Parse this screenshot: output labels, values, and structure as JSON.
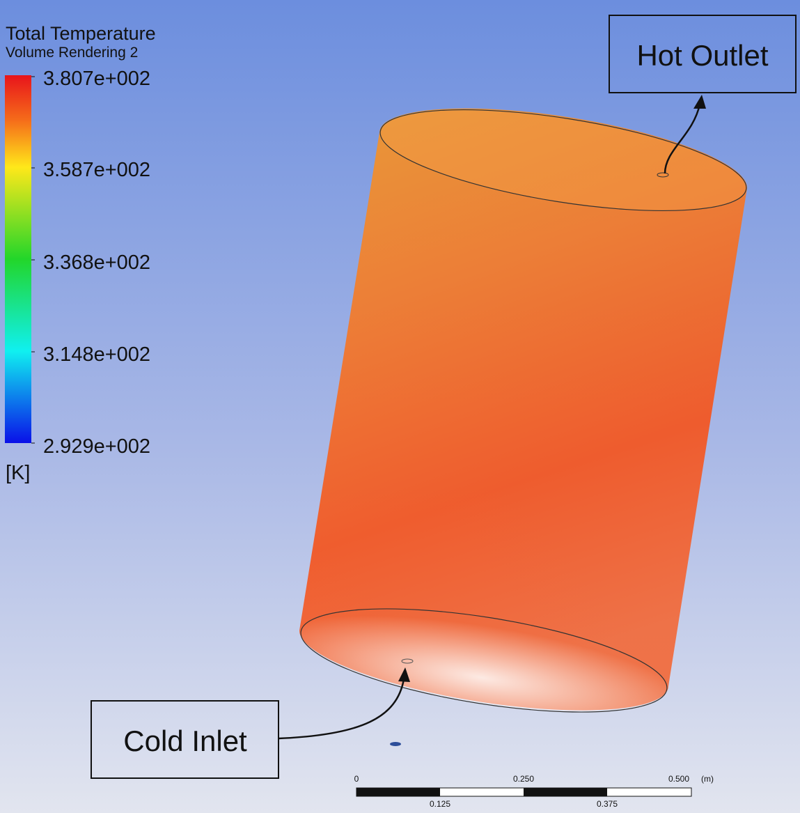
{
  "legend": {
    "title": "Total Temperature",
    "subtitle": "Volume Rendering 2",
    "labels": [
      "3.807e+002",
      "3.587e+002",
      "3.368e+002",
      "3.148e+002",
      "2.929e+002"
    ],
    "unit": "[K]"
  },
  "annotations": {
    "hot_outlet": "Hot Outlet",
    "cold_inlet": "Cold Inlet"
  },
  "scale_bar": {
    "top_labels": [
      "0",
      "0.250",
      "0.500"
    ],
    "unit": "(m)",
    "bottom_labels": [
      "0.125",
      "0.375"
    ]
  }
}
